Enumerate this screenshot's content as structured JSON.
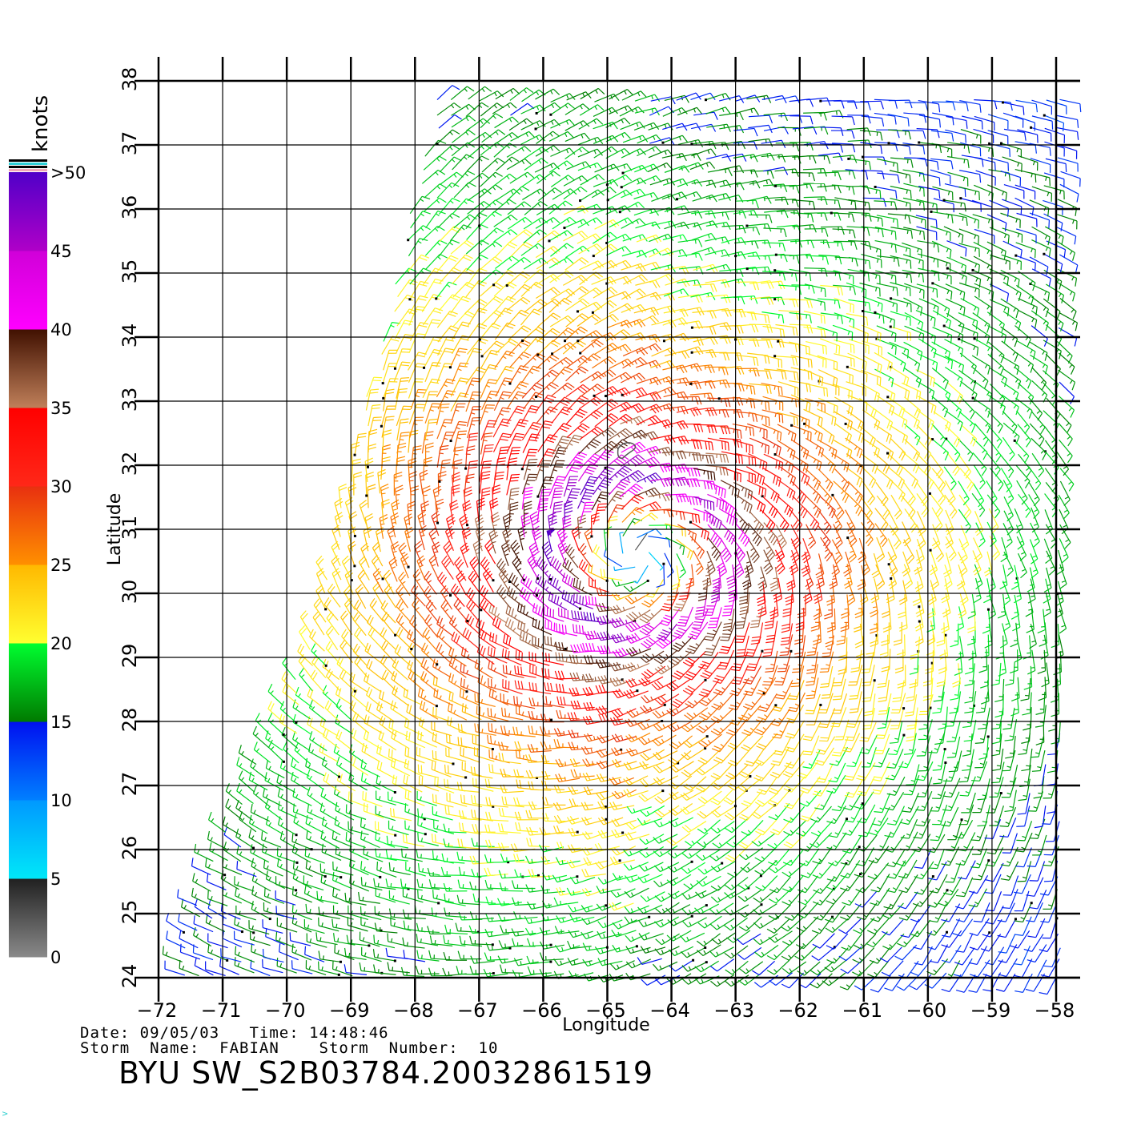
{
  "chart_data": {
    "type": "vector-field",
    "xlabel": "Longitude",
    "ylabel": "Latitude",
    "xlim": [
      -72,
      -58
    ],
    "ylim": [
      24,
      38
    ],
    "xticks": [
      -72,
      -71,
      -70,
      -69,
      -68,
      -67,
      -66,
      -65,
      -64,
      -63,
      -62,
      -61,
      -60,
      -59,
      -58
    ],
    "yticks": [
      24,
      25,
      26,
      27,
      28,
      29,
      30,
      31,
      32,
      33,
      34,
      35,
      36,
      37,
      38
    ],
    "grid": true,
    "storm_center": {
      "lon": -64.5,
      "lat": 30.6
    },
    "max_wind_knots": 50,
    "colorbar": {
      "title": "knots",
      "labels": [
        "0",
        "5",
        "10",
        "15",
        "20",
        "25",
        "30",
        "35",
        "40",
        "45",
        ">50"
      ],
      "bands": [
        {
          "min": 0,
          "max": 5,
          "colors": [
            "#8a8a8a",
            "#202020"
          ]
        },
        {
          "min": 5,
          "max": 10,
          "colors": [
            "#00e8f8",
            "#0098ff"
          ]
        },
        {
          "min": 10,
          "max": 15,
          "colors": [
            "#0080ff",
            "#0010f0"
          ]
        },
        {
          "min": 15,
          "max": 20,
          "colors": [
            "#007a00",
            "#00ff30"
          ]
        },
        {
          "min": 20,
          "max": 25,
          "colors": [
            "#ffff30",
            "#ffb800"
          ]
        },
        {
          "min": 25,
          "max": 30,
          "colors": [
            "#ff9000",
            "#e83010"
          ]
        },
        {
          "min": 30,
          "max": 35,
          "colors": [
            "#ff2818",
            "#ff0000"
          ]
        },
        {
          "min": 35,
          "max": 40,
          "colors": [
            "#c0805a",
            "#401000"
          ]
        },
        {
          "min": 40,
          "max": 45,
          "colors": [
            "#ff00ff",
            "#d000d8"
          ]
        },
        {
          "min": 45,
          "max": 50,
          "colors": [
            "#b000c8",
            "#5000c8"
          ]
        }
      ]
    }
  },
  "info": {
    "line1": "Date: 09/05/03   Time: 14:48:46",
    "line2": "Storm  Name:  FABIAN    Storm  Number:  10",
    "title": "BYU  SW_S2B03784.20032861519",
    "footer_mark": ">"
  }
}
